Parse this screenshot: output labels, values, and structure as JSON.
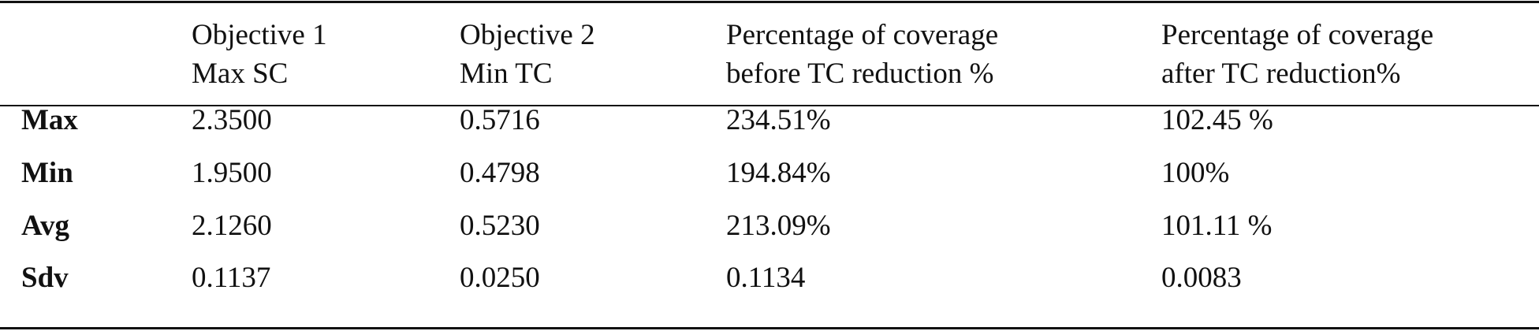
{
  "table": {
    "header": [
      [
        "Objective 1",
        "Max SC"
      ],
      [
        "Objective 2",
        "Min TC"
      ],
      [
        "Percentage of coverage",
        "before TC reduction %"
      ],
      [
        "Percentage of coverage",
        "after TC reduction%"
      ]
    ],
    "rows": [
      [
        "Max",
        "2.3500",
        "0.5716",
        "234.51%",
        "102.45 %"
      ],
      [
        "Min",
        "1.9500",
        "0.4798",
        "194.84%",
        "100%"
      ],
      [
        "Avg",
        "2.1260",
        "0.5230",
        "213.09%",
        "101.11 %"
      ],
      [
        "Sdv",
        "0.1137",
        "0.0250",
        "0.1134",
        "0.0083"
      ]
    ]
  }
}
